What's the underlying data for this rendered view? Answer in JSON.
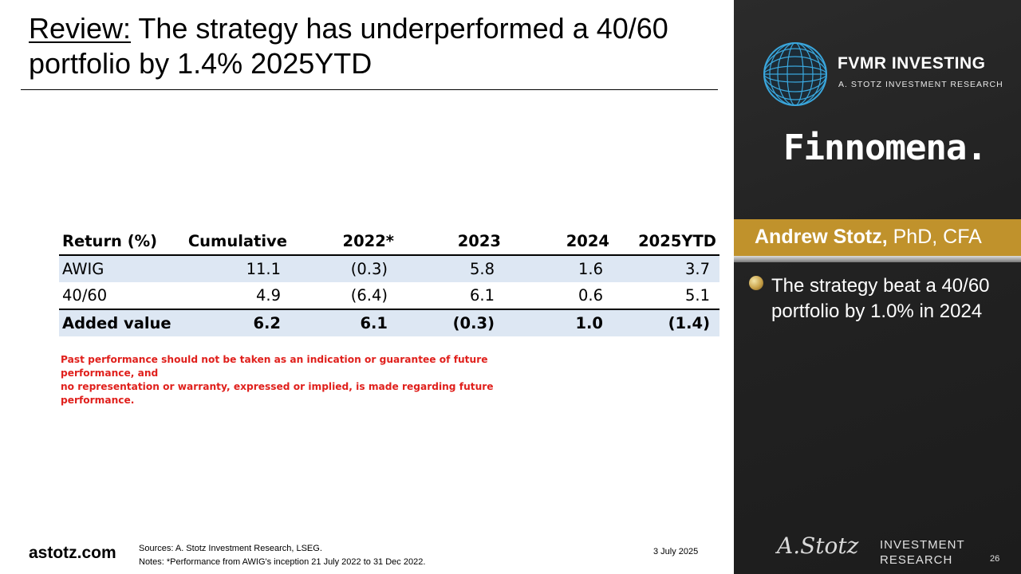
{
  "slide": {
    "title_prefix": "Review:",
    "title_text": " The strategy has underperformed a 40/60 portfolio by 1.4% 2025YTD"
  },
  "table": {
    "headers": [
      "Return (%)",
      "Cumulative",
      "2022*",
      "2023",
      "2024",
      "2025YTD"
    ],
    "rows": [
      [
        "AWIG",
        "11.1",
        "(0.3)",
        "5.8",
        "1.6",
        "3.7"
      ],
      [
        "40/60",
        "4.9",
        "(6.4)",
        "6.1",
        "0.6",
        "5.1"
      ],
      [
        "Added value",
        "6.2",
        "6.1",
        "(0.3)",
        "1.0",
        "(1.4)"
      ]
    ]
  },
  "disclaimer": {
    "line1": "Past performance should not be taken as an indication or guarantee of future performance, and",
    "line2": "no representation or warranty, expressed or implied, is made regarding future performance."
  },
  "footer": {
    "site": "astotz.com",
    "sources": "Sources: A. Stotz Investment Research, LSEG.",
    "notes": "Notes: *Performance from AWIG's inception 21 July 2022 to 31 Dec 2022.",
    "date": "3 July 2025",
    "page_number": "26"
  },
  "panel": {
    "brand": "FVMR INVESTING",
    "brand_sub": "A. STOTZ INVESTMENT RESEARCH",
    "partner": "Finnomena.",
    "presenter_name": "Andrew Stotz,",
    "presenter_credentials": " PhD, CFA",
    "bullet": "The strategy beat a 40/60 portfolio by 1.0% in 2024",
    "logo_signature": "A.Stotz",
    "logo_line1": "INVESTMENT",
    "logo_line2": "RESEARCH"
  }
}
